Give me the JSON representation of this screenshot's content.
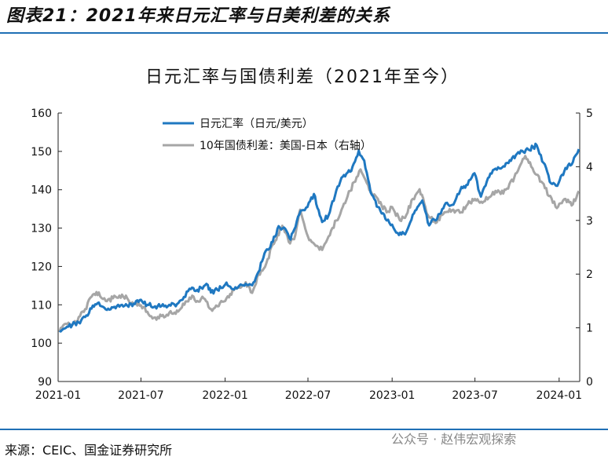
{
  "figure_title": "图表21：2021年来日元汇率与日美利差的关系",
  "source": "来源：CEIC、国金证券研究所",
  "watermark": "公众号 · 赵伟宏观探索",
  "colors": {
    "usdjpy": "#1f78c1",
    "spread": "#a6a6a6",
    "rule": "#1f6fb5"
  },
  "chart_data": {
    "type": "line",
    "title": "日元汇率与国债利差（2021年至今）",
    "x_ticks": [
      "2021-01",
      "2021-07",
      "2022-01",
      "2022-07",
      "2023-01",
      "2023-07",
      "2024-01"
    ],
    "x_range": [
      "2021-01-01",
      "2024-02-15"
    ],
    "y_left": {
      "range": [
        90,
        160
      ],
      "ticks": [
        90,
        100,
        110,
        120,
        130,
        140,
        150,
        160
      ]
    },
    "y_right": {
      "range": [
        0,
        5
      ],
      "ticks": [
        0,
        1,
        2,
        3,
        4,
        5
      ]
    },
    "grid": false,
    "legend_position": "top-center",
    "series": [
      {
        "name": "日元汇率（日元/美元）",
        "axis": "left",
        "color": "#1f78c1",
        "points": [
          [
            "2021-01-04",
            103.2
          ],
          [
            "2021-01-15",
            103.8
          ],
          [
            "2021-02-01",
            104.8
          ],
          [
            "2021-02-15",
            105.4
          ],
          [
            "2021-03-01",
            106.8
          ],
          [
            "2021-03-15",
            109.0
          ],
          [
            "2021-03-31",
            110.6
          ],
          [
            "2021-04-15",
            108.8
          ],
          [
            "2021-05-01",
            109.3
          ],
          [
            "2021-05-15",
            109.5
          ],
          [
            "2021-06-01",
            109.8
          ],
          [
            "2021-06-15",
            110.3
          ],
          [
            "2021-07-01",
            111.3
          ],
          [
            "2021-07-15",
            110.0
          ],
          [
            "2021-08-01",
            109.6
          ],
          [
            "2021-08-15",
            109.7
          ],
          [
            "2021-09-01",
            110.0
          ],
          [
            "2021-09-15",
            109.6
          ],
          [
            "2021-09-30",
            111.3
          ],
          [
            "2021-10-15",
            114.2
          ],
          [
            "2021-11-01",
            113.9
          ],
          [
            "2021-11-24",
            115.2
          ],
          [
            "2021-12-01",
            113.2
          ],
          [
            "2021-12-15",
            113.9
          ],
          [
            "2022-01-04",
            115.8
          ],
          [
            "2022-01-15",
            114.2
          ],
          [
            "2022-02-01",
            115.0
          ],
          [
            "2022-02-15",
            115.5
          ],
          [
            "2022-03-01",
            115.1
          ],
          [
            "2022-03-15",
            118.6
          ],
          [
            "2022-03-28",
            123.4
          ],
          [
            "2022-04-15",
            126.4
          ],
          [
            "2022-04-28",
            130.5
          ],
          [
            "2022-05-15",
            129.3
          ],
          [
            "2022-05-24",
            127.0
          ],
          [
            "2022-06-01",
            129.6
          ],
          [
            "2022-06-15",
            134.5
          ],
          [
            "2022-06-30",
            135.5
          ],
          [
            "2022-07-14",
            138.9
          ],
          [
            "2022-08-01",
            131.6
          ],
          [
            "2022-08-15",
            133.3
          ],
          [
            "2022-09-01",
            139.8
          ],
          [
            "2022-09-15",
            143.4
          ],
          [
            "2022-10-01",
            144.7
          ],
          [
            "2022-10-20",
            150.2
          ],
          [
            "2022-11-01",
            147.6
          ],
          [
            "2022-11-15",
            139.3
          ],
          [
            "2022-12-01",
            135.5
          ],
          [
            "2022-12-20",
            132.0
          ],
          [
            "2023-01-01",
            130.9
          ],
          [
            "2023-01-16",
            128.2
          ],
          [
            "2023-02-01",
            129.0
          ],
          [
            "2023-02-15",
            133.5
          ],
          [
            "2023-03-08",
            137.2
          ],
          [
            "2023-03-23",
            130.7
          ],
          [
            "2023-04-15",
            133.7
          ],
          [
            "2023-05-01",
            136.6
          ],
          [
            "2023-05-15",
            136.1
          ],
          [
            "2023-05-30",
            139.9
          ],
          [
            "2023-06-15",
            141.3
          ],
          [
            "2023-06-30",
            144.3
          ],
          [
            "2023-07-14",
            138.2
          ],
          [
            "2023-08-01",
            143.3
          ],
          [
            "2023-08-15",
            145.5
          ],
          [
            "2023-09-01",
            146.1
          ],
          [
            "2023-09-15",
            147.7
          ],
          [
            "2023-10-01",
            149.4
          ],
          [
            "2023-10-15",
            149.8
          ],
          [
            "2023-11-13",
            151.6
          ],
          [
            "2023-11-28",
            147.0
          ],
          [
            "2023-12-14",
            141.7
          ],
          [
            "2023-12-28",
            141.0
          ],
          [
            "2024-01-15",
            145.7
          ],
          [
            "2024-01-31",
            147.2
          ],
          [
            "2024-02-13",
            150.6
          ]
        ]
      },
      {
        "name": "10年国债利差：美国-日本（右轴）",
        "axis": "right",
        "color": "#a6a6a6",
        "points": [
          [
            "2021-01-04",
            0.92
          ],
          [
            "2021-01-15",
            1.07
          ],
          [
            "2021-02-01",
            1.05
          ],
          [
            "2021-02-15",
            1.2
          ],
          [
            "2021-03-01",
            1.35
          ],
          [
            "2021-03-18",
            1.62
          ],
          [
            "2021-03-31",
            1.66
          ],
          [
            "2021-04-15",
            1.5
          ],
          [
            "2021-05-01",
            1.55
          ],
          [
            "2021-05-15",
            1.6
          ],
          [
            "2021-06-01",
            1.55
          ],
          [
            "2021-06-15",
            1.44
          ],
          [
            "2021-07-01",
            1.42
          ],
          [
            "2021-07-15",
            1.3
          ],
          [
            "2021-08-04",
            1.15
          ],
          [
            "2021-08-15",
            1.22
          ],
          [
            "2021-09-01",
            1.28
          ],
          [
            "2021-09-15",
            1.26
          ],
          [
            "2021-10-01",
            1.45
          ],
          [
            "2021-10-21",
            1.6
          ],
          [
            "2021-11-01",
            1.5
          ],
          [
            "2021-11-15",
            1.55
          ],
          [
            "2021-12-01",
            1.35
          ],
          [
            "2021-12-15",
            1.4
          ],
          [
            "2022-01-04",
            1.55
          ],
          [
            "2022-01-20",
            1.7
          ],
          [
            "2022-02-01",
            1.75
          ],
          [
            "2022-02-15",
            1.85
          ],
          [
            "2022-03-01",
            1.65
          ],
          [
            "2022-03-15",
            2.0
          ],
          [
            "2022-04-01",
            2.2
          ],
          [
            "2022-04-15",
            2.55
          ],
          [
            "2022-05-06",
            2.9
          ],
          [
            "2022-05-20",
            2.6
          ],
          [
            "2022-06-01",
            2.65
          ],
          [
            "2022-06-14",
            3.2
          ],
          [
            "2022-07-01",
            2.7
          ],
          [
            "2022-08-01",
            2.45
          ],
          [
            "2022-08-15",
            2.7
          ],
          [
            "2022-09-01",
            3.0
          ],
          [
            "2022-09-15",
            3.25
          ],
          [
            "2022-10-01",
            3.55
          ],
          [
            "2022-10-24",
            3.95
          ],
          [
            "2022-11-01",
            3.8
          ],
          [
            "2022-11-15",
            3.55
          ],
          [
            "2022-12-01",
            3.4
          ],
          [
            "2022-12-20",
            3.15
          ],
          [
            "2023-01-01",
            3.25
          ],
          [
            "2023-01-18",
            3.0
          ],
          [
            "2023-02-01",
            3.1
          ],
          [
            "2023-02-15",
            3.4
          ],
          [
            "2023-03-02",
            3.58
          ],
          [
            "2023-03-20",
            3.1
          ],
          [
            "2023-04-06",
            2.95
          ],
          [
            "2023-04-20",
            3.1
          ],
          [
            "2023-05-15",
            3.2
          ],
          [
            "2023-06-01",
            3.15
          ],
          [
            "2023-06-15",
            3.3
          ],
          [
            "2023-07-01",
            3.4
          ],
          [
            "2023-07-20",
            3.35
          ],
          [
            "2023-08-15",
            3.55
          ],
          [
            "2023-09-01",
            3.5
          ],
          [
            "2023-09-25",
            3.8
          ],
          [
            "2023-10-19",
            4.2
          ],
          [
            "2023-11-01",
            4.0
          ],
          [
            "2023-11-15",
            3.85
          ],
          [
            "2023-12-01",
            3.6
          ],
          [
            "2023-12-27",
            3.23
          ],
          [
            "2024-01-15",
            3.4
          ],
          [
            "2024-01-31",
            3.3
          ],
          [
            "2024-02-13",
            3.55
          ]
        ]
      }
    ]
  }
}
